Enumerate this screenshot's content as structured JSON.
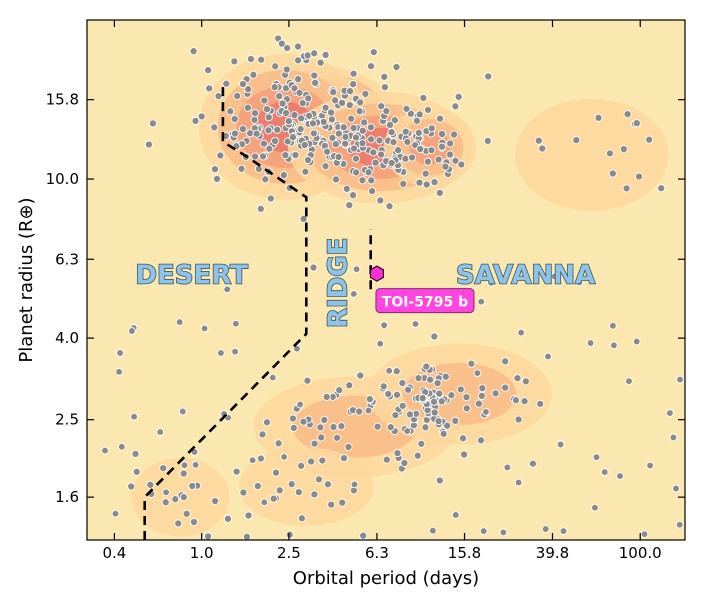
{
  "colors": {
    "background": "#fbe8b0",
    "density_levels": [
      "#fbd79e",
      "#f8bd88",
      "#f4a07a",
      "#ec7a6c",
      "#d6536a",
      "#a93770",
      "#73206a",
      "#3a0f52"
    ],
    "point_fill": "#8a8a8a",
    "point_edge": "#ffffff",
    "boundary_line": "#000000",
    "highlight": "#ff2fd6",
    "callout_fill": "#ff45e0",
    "region_label_fill": "#8ec3e6"
  },
  "chart_data": {
    "type": "scatter",
    "xlabel": "Orbital period (days)",
    "ylabel": "Planet radius (R⊕)",
    "x_scale": "log",
    "y_scale": "log",
    "xlim": [
      0.3,
      160
    ],
    "ylim": [
      1.25,
      25
    ],
    "x_ticks": [
      0.4,
      1.0,
      2.5,
      6.3,
      15.8,
      39.8,
      100.0
    ],
    "x_tick_labels": [
      "0.4",
      "1.0",
      "2.5",
      "6.3",
      "15.8",
      "39.8",
      "100.0"
    ],
    "y_ticks": [
      1.6,
      2.5,
      4.0,
      6.3,
      10.0,
      15.8
    ],
    "y_tick_labels": [
      "1.6",
      "2.5",
      "4.0",
      "6.3",
      "10.0",
      "15.8"
    ],
    "grid": false,
    "regions": [
      {
        "label": "DESERT",
        "x": 0.9,
        "y": 5.8
      },
      {
        "label": "RIDGE",
        "x": 4.2,
        "y": 5.5,
        "rotation": -90
      },
      {
        "label": "SAVANNA",
        "x": 30,
        "y": 5.8
      }
    ],
    "boundaries": [
      {
        "name": "desert boundary",
        "points": [
          [
            0.55,
            1.25
          ],
          [
            0.55,
            1.6
          ],
          [
            3.0,
            4.1
          ],
          [
            3.0,
            9.0
          ],
          [
            1.6,
            11.4
          ],
          [
            1.25,
            12.4
          ],
          [
            1.25,
            17.0
          ]
        ]
      },
      {
        "name": "ridge boundary",
        "points": [
          [
            5.9,
            5.3
          ],
          [
            5.9,
            7.5
          ]
        ]
      }
    ],
    "highlight": {
      "label": "TOI-5795 b",
      "x": 6.3,
      "y": 5.8
    },
    "density_clusters": [
      {
        "x": 3.2,
        "y": 14.0,
        "spread_x": 0.28,
        "spread_y": 0.1,
        "weight": 1.0
      },
      {
        "x": 2.4,
        "y": 13.5,
        "spread_x": 0.28,
        "spread_y": 0.13,
        "weight": 0.55
      },
      {
        "x": 6.5,
        "y": 12.0,
        "spread_x": 0.3,
        "spread_y": 0.1,
        "weight": 0.45
      },
      {
        "x": 11.0,
        "y": 12.0,
        "spread_x": 0.15,
        "spread_y": 0.07,
        "weight": 0.35
      },
      {
        "x": 10.5,
        "y": 2.7,
        "spread_x": 0.12,
        "spread_y": 0.07,
        "weight": 0.45
      },
      {
        "x": 5.0,
        "y": 2.4,
        "spread_x": 0.33,
        "spread_y": 0.09,
        "weight": 0.28
      },
      {
        "x": 15.0,
        "y": 2.9,
        "spread_x": 0.3,
        "spread_y": 0.09,
        "weight": 0.25
      },
      {
        "x": 3.0,
        "y": 1.7,
        "spread_x": 0.22,
        "spread_y": 0.07,
        "weight": 0.18
      },
      {
        "x": 0.8,
        "y": 1.6,
        "spread_x": 0.16,
        "spread_y": 0.07,
        "weight": 0.15
      },
      {
        "x": 60.0,
        "y": 11.5,
        "spread_x": 0.25,
        "spread_y": 0.1,
        "weight": 0.1
      }
    ]
  }
}
